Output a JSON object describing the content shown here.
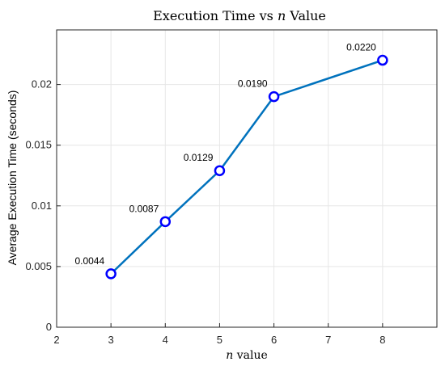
{
  "chart_data": {
    "type": "line",
    "title_parts": [
      "Execution Time vs ",
      "n",
      " Value"
    ],
    "xlabel_parts": [
      "n",
      " value"
    ],
    "ylabel": "Average Execution Time (seconds)",
    "x": [
      3,
      4,
      5,
      6,
      8
    ],
    "series": [
      {
        "values": [
          0.0044,
          0.0087,
          0.0129,
          0.019,
          0.022
        ]
      }
    ],
    "data_labels": [
      "0.0044",
      "0.0087",
      "0.0129",
      "0.0190",
      "0.0220"
    ],
    "xlim": [
      2,
      9
    ],
    "ylim": [
      0,
      0.0245
    ],
    "xticks": [
      2,
      3,
      4,
      5,
      6,
      7,
      8
    ],
    "xtick_labels": [
      "2",
      "3",
      "4",
      "5",
      "6",
      "7",
      "8"
    ],
    "yticks": [
      0,
      0.005,
      0.01,
      0.015,
      0.02
    ],
    "ytick_labels": [
      "0",
      "0.005",
      "0.01",
      "0.015",
      "0.02"
    ],
    "grid": true,
    "line_color": "#0072BD",
    "marker_color": "#0000FF"
  }
}
